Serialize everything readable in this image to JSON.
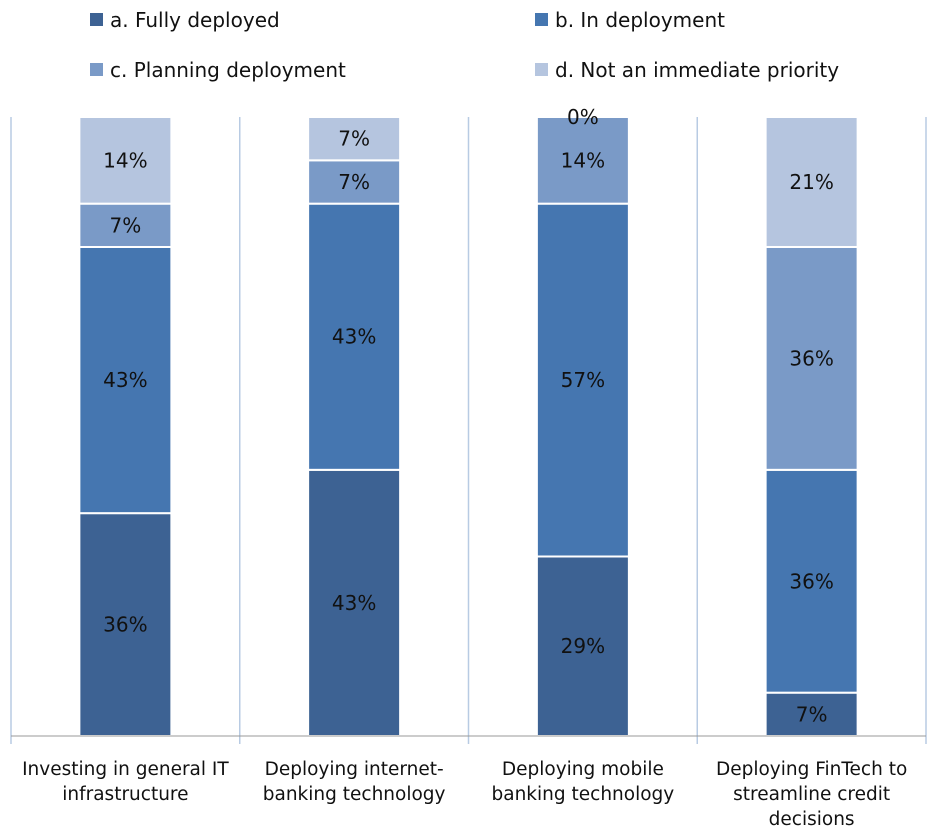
{
  "chart_data": {
    "type": "bar",
    "stacked": true,
    "categories": [
      [
        "Investing in general IT",
        "infrastructure"
      ],
      [
        "Deploying internet-",
        "banking technology"
      ],
      [
        "Deploying mobile",
        "banking technology"
      ],
      [
        "Deploying FinTech to",
        "streamline credit",
        "decisions"
      ]
    ],
    "series": [
      {
        "name": "a. Fully deployed",
        "color": "#3d6293",
        "values": [
          36,
          43,
          29,
          7
        ]
      },
      {
        "name": "b. In deployment",
        "color": "#4576b0",
        "values": [
          43,
          43,
          57,
          36
        ]
      },
      {
        "name": "c. Planning deployment",
        "color": "#7a9ac7",
        "values": [
          7,
          7,
          14,
          36
        ]
      },
      {
        "name": "d. Not an immediate priority",
        "color": "#b5c5df",
        "values": [
          14,
          7,
          0,
          21
        ]
      }
    ],
    "value_suffix": "%",
    "ylim": [
      0,
      100
    ],
    "legend_position": "top",
    "grid": false
  }
}
